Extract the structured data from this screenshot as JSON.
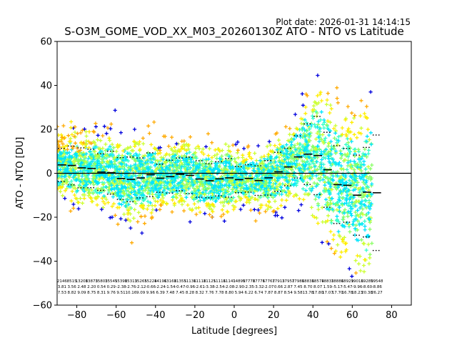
{
  "plot_date": "Plot date: 2026-01-31 14:14:15",
  "chart_data": {
    "type": "scatter",
    "title": "S-O3M_GOME_VOD_XX_M03_20260130Z ATO - NTO vs Latitude",
    "xlabel": "Latitude [degrees]",
    "ylabel": "ATO - NTO [DU]",
    "xlim": [
      -90,
      90
    ],
    "ylim": [
      -60,
      60
    ],
    "xticks": [
      -80,
      -60,
      -40,
      -20,
      0,
      20,
      40,
      60,
      80
    ],
    "yticks": [
      -60,
      -40,
      -20,
      0,
      20,
      40,
      60
    ],
    "grid": false,
    "reference_line_y": 0,
    "colors": {
      "cyan": "#00e5ff",
      "aquamarine": "#33ffcc",
      "light_green": "#88ff66",
      "yellow_green": "#ccff33",
      "yellow": "#ffee00",
      "orange": "#ffaa00",
      "blue": "#0000dd",
      "mean_marker": "#000000"
    },
    "bins": [
      {
        "lat": -87.5,
        "mean": 3.81,
        "sd": 7.53,
        "n": "2146"
      },
      {
        "lat": -82.5,
        "mean": 3.56,
        "sd": 8.82,
        "n": "8515"
      },
      {
        "lat": -77.5,
        "mean": 2.48,
        "sd": 9.09,
        "n": "13208"
      },
      {
        "lat": -72.5,
        "mean": 2.2,
        "sd": 8.75,
        "n": "13873"
      },
      {
        "lat": -67.5,
        "mean": 0.54,
        "sd": 8.31,
        "n": "15803"
      },
      {
        "lat": -62.5,
        "mean": 0.29,
        "sd": 9.76,
        "n": "15545"
      },
      {
        "lat": -57.5,
        "mean": -2.38,
        "sd": 9.51,
        "n": "15398"
      },
      {
        "lat": -52.5,
        "mean": -2.76,
        "sd": 10.16,
        "n": "15313"
      },
      {
        "lat": -47.5,
        "mean": -2.12,
        "sd": 9.09,
        "n": "15265"
      },
      {
        "lat": -42.5,
        "mean": -0.66,
        "sd": 9.96,
        "n": "15224"
      },
      {
        "lat": -37.5,
        "mean": -2.24,
        "sd": 6.39,
        "n": "14196"
      },
      {
        "lat": -32.5,
        "mean": -1.54,
        "sd": 7.48,
        "n": "13168"
      },
      {
        "lat": -27.5,
        "mean": -0.47,
        "sd": 7.45,
        "n": "11355"
      },
      {
        "lat": -22.5,
        "mean": -0.96,
        "sd": 8.28,
        "n": "11136"
      },
      {
        "lat": -17.5,
        "mean": -2.61,
        "sd": 8.32,
        "n": "11118"
      },
      {
        "lat": -12.5,
        "mean": -3.38,
        "sd": 7.76,
        "n": "11125"
      },
      {
        "lat": -7.5,
        "mean": -2.54,
        "sd": 7.78,
        "n": "11116"
      },
      {
        "lat": -2.5,
        "mean": -2.08,
        "sd": 8.8,
        "n": "11141"
      },
      {
        "lat": 2.5,
        "mean": -2.9,
        "sd": 5.94,
        "n": "14899"
      },
      {
        "lat": 7.5,
        "mean": -2.35,
        "sd": 6.22,
        "n": "17778"
      },
      {
        "lat": 12.5,
        "mean": -3.32,
        "sd": 6.74,
        "n": "17776"
      },
      {
        "lat": 17.5,
        "mean": -2.07,
        "sd": 7.87,
        "n": "17767"
      },
      {
        "lat": 22.5,
        "mean": 0.66,
        "sd": 8.87,
        "n": "17913"
      },
      {
        "lat": 27.5,
        "mean": 2.87,
        "sd": 8.54,
        "n": "17957"
      },
      {
        "lat": 32.5,
        "mean": 7.45,
        "sd": 9.58,
        "n": "17986"
      },
      {
        "lat": 37.5,
        "mean": 8.7,
        "sd": 13.78,
        "n": "18836"
      },
      {
        "lat": 42.5,
        "mean": 8.07,
        "sd": 17.8,
        "n": "18574"
      },
      {
        "lat": 47.5,
        "mean": 1.59,
        "sd": 17.07,
        "n": "18833"
      },
      {
        "lat": 52.5,
        "mean": -5.17,
        "sd": 17.7,
        "n": "18886"
      },
      {
        "lat": 57.5,
        "mean": -5.47,
        "sd": 16.78,
        "n": "18929"
      },
      {
        "lat": 62.5,
        "mean": -9.96,
        "sd": 18.23,
        "n": "19016"
      },
      {
        "lat": 67.5,
        "mean": -8.6,
        "sd": 20.38,
        "n": "19289"
      },
      {
        "lat": 72.5,
        "mean": -8.86,
        "sd": 26.27,
        "n": "19548"
      }
    ]
  }
}
